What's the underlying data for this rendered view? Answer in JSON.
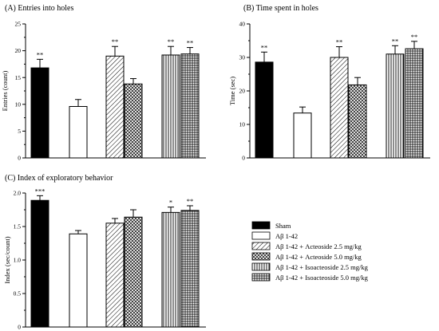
{
  "chart_data": [
    {
      "type": "bar",
      "title": "(A) Entries into holes",
      "xlabel": "",
      "ylabel": "Entries (count)",
      "ylim": [
        0,
        25
      ],
      "yticks": [
        "0",
        "5",
        "10",
        "15",
        "20",
        "25"
      ],
      "categories": [
        "Sham",
        "Aβ 1-42",
        "Aβ 1-42 + Acteoside 2.5 mg/kg",
        "Aβ 1-42 + Acteoside 5.0 mg/kg",
        "Aβ 1-42 + Isoacteoside 2.5 mg/kg",
        "Aβ 1-42 + Isoacteoside 5.0 mg/kg"
      ],
      "values": [
        16.8,
        9.6,
        19.0,
        13.8,
        19.2,
        19.4
      ],
      "errors": [
        1.6,
        1.3,
        1.8,
        1.0,
        1.6,
        1.2
      ],
      "significance": [
        "**",
        "",
        "**",
        "",
        "**",
        "**"
      ]
    },
    {
      "type": "bar",
      "title": "(B) Time spent in holes",
      "xlabel": "",
      "ylabel": "Time (sec)",
      "ylim": [
        0,
        40
      ],
      "yticks": [
        "0",
        "10",
        "20",
        "30",
        "40"
      ],
      "categories": [
        "Sham",
        "Aβ 1-42",
        "Aβ 1-42 + Acteoside 2.5 mg/kg",
        "Aβ 1-42 + Acteoside 5.0 mg/kg",
        "Aβ 1-42 + Isoacteoside 2.5 mg/kg",
        "Aβ 1-42 + Isoacteoside 5.0 mg/kg"
      ],
      "values": [
        28.6,
        13.4,
        30.0,
        21.8,
        31.0,
        32.6
      ],
      "errors": [
        3.0,
        1.8,
        3.2,
        2.2,
        2.5,
        2.2
      ],
      "significance": [
        "**",
        "",
        "**",
        "",
        "**",
        "**"
      ]
    },
    {
      "type": "bar",
      "title": "(C) Index of exploratory behavior",
      "xlabel": "",
      "ylabel": "Index (sec/count)",
      "ylim": [
        0,
        2.0
      ],
      "yticks": [
        "0",
        "0.5",
        "1.0",
        "1.5",
        "2.0"
      ],
      "categories": [
        "Sham",
        "Aβ 1-42",
        "Aβ 1-42 + Acteoside 2.5 mg/kg",
        "Aβ 1-42 + Acteoside 5.0 mg/kg",
        "Aβ 1-42 + Isoacteoside 2.5 mg/kg",
        "Aβ 1-42 + Isoacteoside 5.0 mg/kg"
      ],
      "values": [
        1.89,
        1.39,
        1.55,
        1.64,
        1.71,
        1.74
      ],
      "errors": [
        0.07,
        0.05,
        0.07,
        0.11,
        0.08,
        0.07
      ],
      "significance": [
        "***",
        "",
        "",
        "",
        "*",
        "**"
      ]
    }
  ],
  "legend": {
    "placement": "bottom-right",
    "items": [
      {
        "label": "Sham",
        "pattern": "solid-black"
      },
      {
        "label": "Aβ 1-42",
        "pattern": "white"
      },
      {
        "label": "Aβ 1-42 + Acteoside 2.5 mg/kg",
        "pattern": "diagonal-hatch"
      },
      {
        "label": "Aβ 1-42 + Acteoside 5.0 mg/kg",
        "pattern": "cross-hatch"
      },
      {
        "label": "Aβ 1-42 + Isoacteoside 2.5 mg/kg",
        "pattern": "vertical-lines"
      },
      {
        "label": "Aβ 1-42 + Isoacteoside 5.0 mg/kg",
        "pattern": "grid"
      }
    ]
  },
  "colors": {
    "ink": "#000000",
    "background": "#ffffff"
  }
}
